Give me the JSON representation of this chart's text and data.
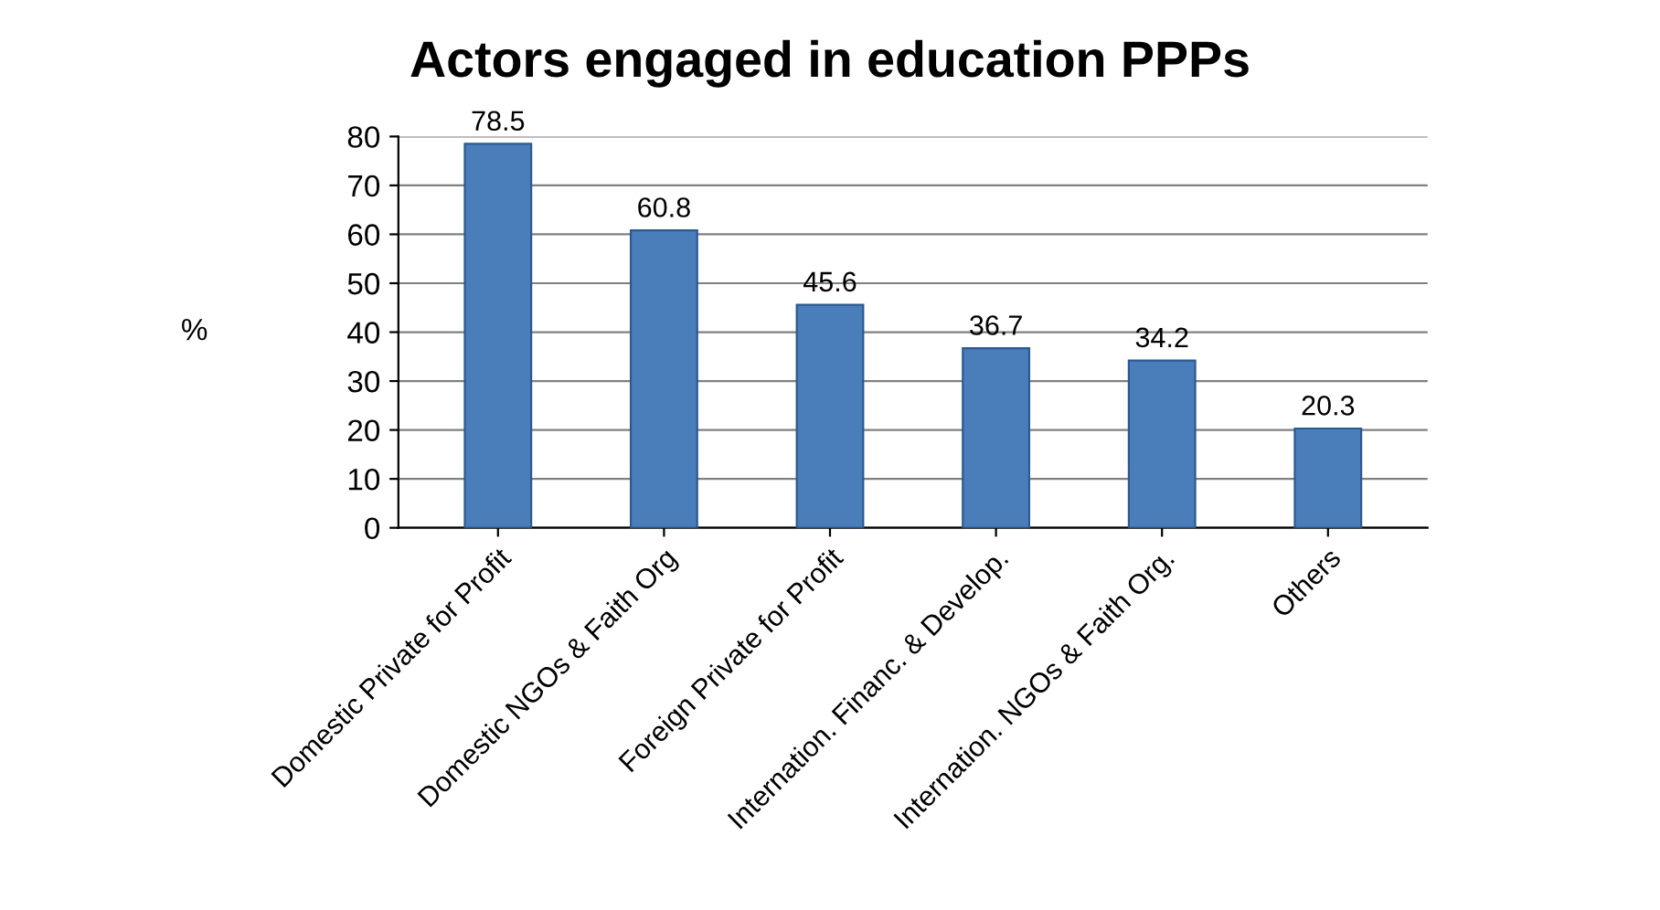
{
  "chart_data": {
    "type": "bar",
    "title": "Actors engaged in education PPPs",
    "ylabel": "%",
    "categories": [
      "Domestic Private for Profit",
      "Domestic NGOs & Faith Org",
      "Foreign Private for Profit",
      "Internation. Financ. & Develop.",
      "Internation. NGOs & Faith Org.",
      "Others"
    ],
    "values": [
      78.5,
      60.8,
      45.6,
      36.7,
      34.2,
      20.3
    ],
    "color": "#4a7ebb",
    "ylim": [
      0,
      80
    ],
    "yticks": [
      0,
      10,
      20,
      30,
      40,
      50,
      60,
      70,
      80
    ],
    "grid": "y",
    "data_labels": true
  }
}
